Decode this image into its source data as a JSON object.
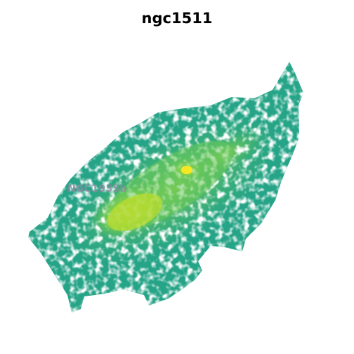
{
  "title": "ngc1511",
  "annotation": "NGC1935b",
  "colormap": {
    "name": "viridis",
    "low": "#2a9d80",
    "mid": "#5fc95a",
    "high": "#fde725",
    "edge": "#26a487"
  },
  "background": "#ffffff"
}
